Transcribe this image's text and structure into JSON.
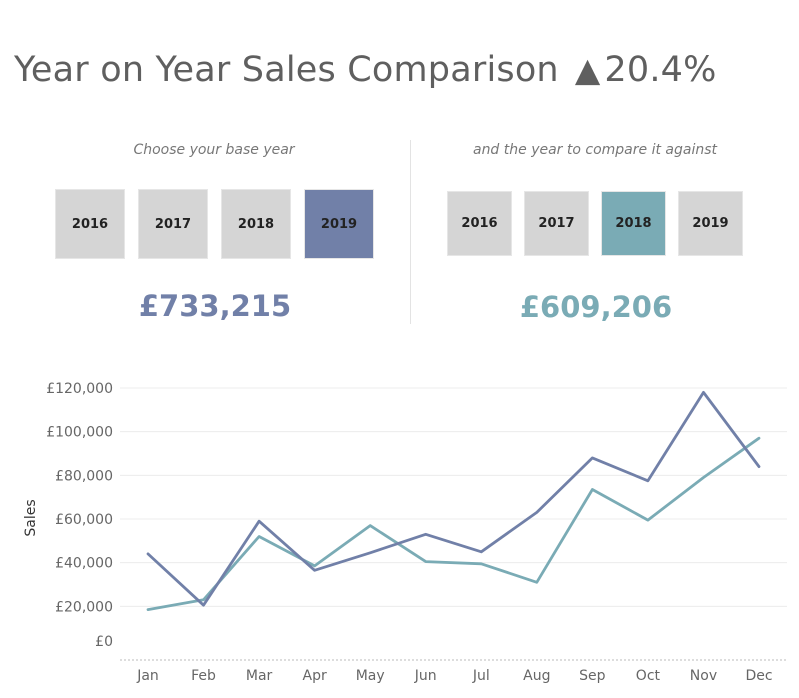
{
  "header": {
    "title": "Year on Year Sales Comparison",
    "change_indicator": "▲",
    "change_pct": "20.4%"
  },
  "base_panel": {
    "prompt": "Choose your base year",
    "years": [
      "2016",
      "2017",
      "2018",
      "2019"
    ],
    "selected": "2019",
    "total": "£733,215"
  },
  "compare_panel": {
    "prompt": "and the year to compare it against",
    "years": [
      "2016",
      "2017",
      "2018",
      "2019"
    ],
    "selected": "2018",
    "total": "£609,206"
  },
  "colors": {
    "base": "#7180a8",
    "compare": "#7aabb5",
    "button": "#d5d5d5"
  },
  "chart_data": {
    "type": "line",
    "title": "",
    "xlabel": "",
    "ylabel": "Sales",
    "categories": [
      "Jan",
      "Feb",
      "Mar",
      "Apr",
      "May",
      "Jun",
      "Jul",
      "Aug",
      "Sep",
      "Oct",
      "Nov",
      "Dec"
    ],
    "y_ticks": [
      "£0",
      "£20,000",
      "£40,000",
      "£60,000",
      "£80,000",
      "£100,000",
      "£120,000"
    ],
    "ylim": [
      0,
      120000
    ],
    "grid": true,
    "series": [
      {
        "values": [
          44000,
          20500,
          59000,
          36500,
          44500,
          53000,
          45000,
          63000,
          88000,
          77500,
          118000,
          84000
        ]
      },
      {
        "values": [
          18500,
          23000,
          52000,
          38500,
          57000,
          40500,
          39500,
          31000,
          73500,
          59500,
          79000,
          97000
        ]
      }
    ]
  }
}
